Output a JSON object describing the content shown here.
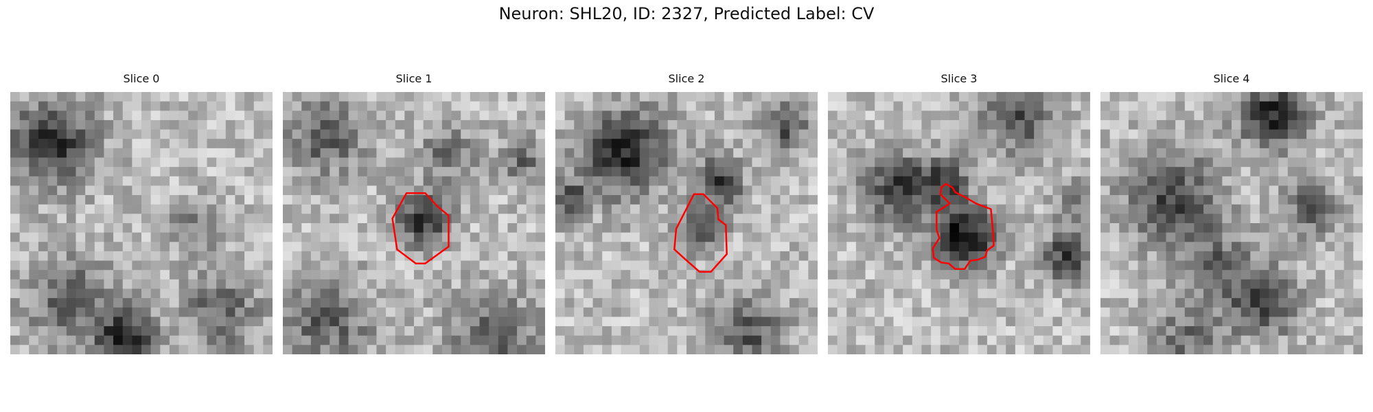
{
  "figure": {
    "title": "Neuron: SHL20, ID: 2327, Predicted Label: CV"
  },
  "contour_color": "#ff0000",
  "panels": [
    {
      "title": "Slice 0",
      "has_contour": false
    },
    {
      "title": "Slice 1",
      "has_contour": true
    },
    {
      "title": "Slice 2",
      "has_contour": true
    },
    {
      "title": "Slice 3",
      "has_contour": true
    },
    {
      "title": "Slice 4",
      "has_contour": false
    }
  ]
}
